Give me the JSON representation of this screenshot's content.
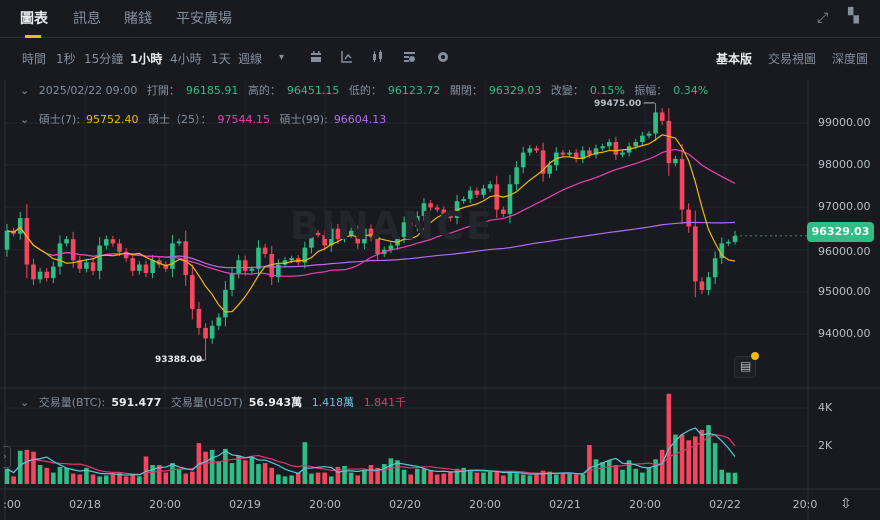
{
  "tabs": [
    {
      "label": "圖表",
      "active": true
    },
    {
      "label": "訊息"
    },
    {
      "label": "賭錢"
    },
    {
      "label": "平安廣場"
    }
  ],
  "toolbar": {
    "intervals": [
      {
        "label": "時間"
      },
      {
        "label": "1秒"
      },
      {
        "label": "15分鐘"
      },
      {
        "label": "1小時",
        "active": true
      },
      {
        "label": "4小時"
      },
      {
        "label": "1天"
      },
      {
        "label": "週線"
      }
    ],
    "dropdown_icon": "▾",
    "tool_icons": [
      "calendar-icon",
      "indicator-icon",
      "candlestick-icon",
      "template-icon",
      "gear-icon"
    ],
    "views": [
      {
        "label": "基本版",
        "active": true
      },
      {
        "label": "交易視圖"
      },
      {
        "label": "深度圖"
      }
    ]
  },
  "ohlc": {
    "date": "2025/02/22 09:00",
    "open_label": "打開：",
    "open": "96185.91",
    "high_label": "高的：",
    "high": "96451.15",
    "low_label": "低的：",
    "low": "96123.72",
    "close_label": "關閉：",
    "close": "96329.03",
    "change_label": "改變：",
    "change": "0.15%",
    "amp_label": "振幅：",
    "amp": "0.34%"
  },
  "ma": {
    "ma7_label": "碩士(7):",
    "ma7": "95752.40",
    "ma25_label": "碩士（25）：",
    "ma25": "97544.15",
    "ma99_label": "碩士(99):",
    "ma99": "96604.13"
  },
  "volume_info": {
    "btc_label": "交易量(BTC):",
    "btc": "591.477",
    "usdt_label": "交易量(USDT)",
    "usdt": "56.943萬",
    "ma5": "1.418萬",
    "ma10": "1.841千"
  },
  "price_axis": [
    "99000.00",
    "98000.00",
    "97000.00",
    "96000.00",
    "95000.00",
    "94000.00"
  ],
  "volume_axis": [
    "4K",
    "2K"
  ],
  "time_axis": [
    ":00",
    "02/18",
    "20:00",
    "02/19",
    "20:00",
    "02/20",
    "20:00",
    "02/21",
    "20:00",
    "02/22",
    "20:0"
  ],
  "last_price": "96329.03",
  "high_marker": "99475.00",
  "low_marker": "93388.09",
  "watermark": "BINANCE",
  "colors": {
    "up": "#2ebd85",
    "down": "#f6465d",
    "ma7": "#f0b90b",
    "ma25": "#eb40b5",
    "ma99": "#b26bf0",
    "vol_ma5": "#5ac8dc",
    "vol_ma10": "#e0386b",
    "accent": "#f0b90b"
  },
  "chart_data": {
    "type": "candlestick",
    "first_open": 96000,
    "close": [
      96450,
      96380,
      96750,
      95650,
      95300,
      95480,
      95330,
      95600,
      96150,
      96250,
      95750,
      95550,
      95700,
      95500,
      96100,
      96250,
      96150,
      95950,
      95800,
      95500,
      95650,
      95450,
      95750,
      95650,
      95550,
      96150,
      96200,
      95400,
      94600,
      94150,
      93900,
      94200,
      94400,
      95050,
      95450,
      95750,
      95500,
      95550,
      96050,
      95900,
      95350,
      95650,
      95750,
      95800,
      95700,
      96050,
      96400,
      96350,
      96100,
      96500,
      96250,
      96350,
      96450,
      96150,
      96500,
      96300,
      95900,
      96000,
      96100,
      96300,
      96650,
      96550,
      96800,
      97100,
      97000,
      96950,
      96850,
      96750,
      97150,
      97200,
      97400,
      97300,
      97450,
      97550,
      96950,
      96850,
      97550,
      97950,
      98300,
      98400,
      98350,
      97800,
      98000,
      98300,
      98250,
      98300,
      98150,
      98350,
      98250,
      98400,
      98450,
      98550,
      98250,
      98300,
      98450,
      98550,
      98700,
      98750,
      99250,
      99050,
      98050,
      98150,
      96950,
      96550,
      95250,
      95050,
      95350,
      95800,
      96150,
      96185.91,
      96329.03
    ],
    "volume": [
      800,
      400,
      1750,
      1800,
      1700,
      1000,
      850,
      600,
      900,
      850,
      550,
      500,
      850,
      500,
      400,
      450,
      500,
      600,
      400,
      500,
      400,
      1450,
      1000,
      1000,
      600,
      1100,
      800,
      550,
      650,
      2150,
      1700,
      1800,
      1200,
      1850,
      1100,
      1500,
      1250,
      1400,
      1050,
      1100,
      850,
      500,
      400,
      450,
      600,
      2200,
      550,
      600,
      600,
      400,
      900,
      950,
      600,
      450,
      700,
      1000,
      850,
      1050,
      1350,
      1250,
      750,
      500,
      800,
      800,
      700,
      500,
      550,
      650,
      800,
      850,
      750,
      600,
      600,
      650,
      700,
      450,
      650,
      550,
      500,
      450,
      500,
      700,
      650,
      500,
      550,
      550,
      500,
      500,
      2050,
      1300,
      1150,
      1250,
      1000,
      750,
      1250,
      800,
      600,
      850,
      1300,
      1800,
      4750,
      2600,
      2600,
      2300,
      2500,
      2850,
      3100,
      2150,
      750,
      600,
      591.477
    ],
    "price_range": [
      93000,
      99700
    ],
    "volume_range": [
      0,
      4000
    ],
    "moving_averages": [
      7,
      25,
      99
    ],
    "volume_moving_averages": [
      5,
      10
    ]
  }
}
